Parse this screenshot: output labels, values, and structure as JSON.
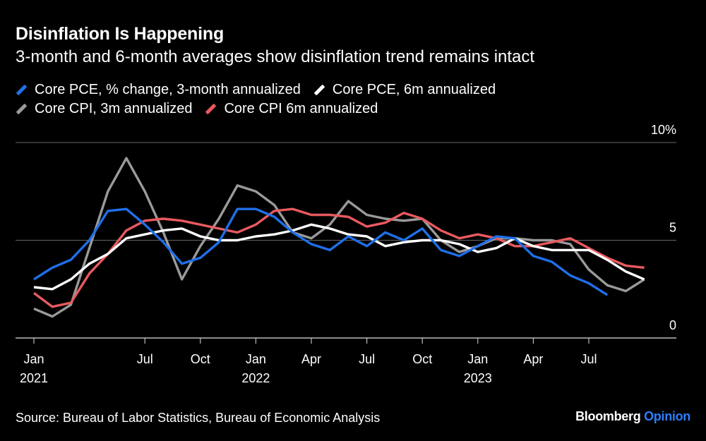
{
  "header": {
    "title": "Disinflation Is Happening",
    "subtitle": "3-month and 6-month averages show disinflation trend remains intact"
  },
  "footer": {
    "source": "Source: Bureau of Labor Statistics, Bureau of Economic Analysis",
    "brand_primary": "Bloomberg",
    "brand_secondary": "Opinion"
  },
  "chart_data": {
    "type": "line",
    "title": "Disinflation Is Happening",
    "subtitle": "3-month and 6-month averages show disinflation trend remains intact",
    "xlabel": "",
    "ylabel": "",
    "ylim": [
      0,
      10
    ],
    "y_ticks": [
      {
        "value": 10,
        "label": "10%"
      },
      {
        "value": 5,
        "label": "5"
      },
      {
        "value": 0,
        "label": "0"
      }
    ],
    "grid": true,
    "legend_position": "top-left",
    "x": [
      "2021-01",
      "2021-02",
      "2021-03",
      "2021-04",
      "2021-05",
      "2021-06",
      "2021-07",
      "2021-08",
      "2021-09",
      "2021-10",
      "2021-11",
      "2021-12",
      "2022-01",
      "2022-02",
      "2022-03",
      "2022-04",
      "2022-05",
      "2022-06",
      "2022-07",
      "2022-08",
      "2022-09",
      "2022-10",
      "2022-11",
      "2022-12",
      "2023-01",
      "2023-02",
      "2023-03",
      "2023-04",
      "2023-05",
      "2023-06",
      "2023-07",
      "2023-08",
      "2023-09",
      "2023-10",
      "2023-11"
    ],
    "x_ticks": [
      {
        "x": "2021-01",
        "label": "Jan",
        "year": "2021"
      },
      {
        "x": "2021-07",
        "label": "Jul",
        "year": ""
      },
      {
        "x": "2021-10",
        "label": "Oct",
        "year": ""
      },
      {
        "x": "2022-01",
        "label": "Jan",
        "year": "2022"
      },
      {
        "x": "2022-04",
        "label": "Apr",
        "year": ""
      },
      {
        "x": "2022-07",
        "label": "Jul",
        "year": ""
      },
      {
        "x": "2022-10",
        "label": "Oct",
        "year": ""
      },
      {
        "x": "2023-01",
        "label": "Jan",
        "year": "2023"
      },
      {
        "x": "2023-04",
        "label": "Apr",
        "year": ""
      },
      {
        "x": "2023-07",
        "label": "Jul",
        "year": ""
      }
    ],
    "series": [
      {
        "name": "Core CPI, 3m annualized",
        "color": "#9a9a9a",
        "values": [
          1.5,
          1.1,
          1.7,
          4.6,
          7.5,
          9.2,
          7.5,
          5.4,
          3.0,
          4.7,
          6.1,
          7.8,
          7.5,
          6.8,
          5.4,
          5.1,
          5.8,
          7.0,
          6.3,
          6.1,
          6.0,
          6.1,
          5.0,
          4.4,
          4.7,
          5.1,
          5.1,
          5.0,
          5.0,
          4.8,
          3.5,
          2.7,
          2.4,
          3.0,
          null
        ]
      },
      {
        "name": "Core CPI 6m annualized",
        "color": "#e85a5f",
        "values": [
          2.3,
          1.6,
          1.8,
          3.3,
          4.3,
          5.5,
          6.0,
          6.1,
          6.0,
          5.8,
          5.6,
          5.4,
          5.8,
          6.5,
          6.6,
          6.3,
          6.3,
          6.2,
          5.7,
          5.9,
          6.4,
          6.1,
          5.5,
          5.1,
          5.3,
          5.1,
          4.7,
          4.7,
          4.9,
          5.1,
          4.6,
          4.1,
          3.7,
          3.6,
          null
        ]
      },
      {
        "name": "Core PCE, 6m annualized",
        "color": "#ffffff",
        "values": [
          2.6,
          2.5,
          3.0,
          3.8,
          4.3,
          5.1,
          5.3,
          5.5,
          5.6,
          5.2,
          5.0,
          5.0,
          5.2,
          5.3,
          5.5,
          5.8,
          5.6,
          5.3,
          5.2,
          4.7,
          4.9,
          5.0,
          5.0,
          4.8,
          4.4,
          4.6,
          5.1,
          4.7,
          4.5,
          4.5,
          4.5,
          4.0,
          3.4,
          3.0,
          null
        ]
      },
      {
        "name": "Core PCE, % change, 3-month annualized",
        "color": "#1f6fe8",
        "values": [
          3.0,
          3.6,
          4.0,
          5.0,
          6.5,
          6.6,
          5.8,
          4.9,
          3.8,
          4.1,
          4.9,
          6.6,
          6.6,
          6.2,
          5.4,
          4.8,
          4.5,
          5.2,
          4.7,
          5.4,
          5.0,
          5.6,
          4.5,
          4.2,
          4.7,
          5.2,
          5.1,
          4.2,
          3.9,
          3.2,
          2.8,
          2.2,
          null,
          null,
          null
        ]
      }
    ]
  }
}
